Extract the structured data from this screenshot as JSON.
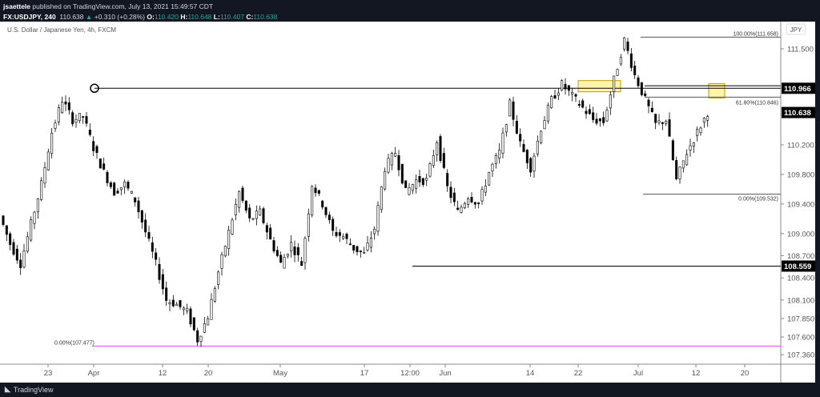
{
  "header": {
    "author": "jsaettele",
    "published": "published on TradingView.com, July 13, 2021 15:49:57 CDT",
    "symbol": "FX:USDJPY, 240",
    "last": "110.638",
    "change": "+0.310 (+0.28%)",
    "o_label": "O:",
    "o": "110.420",
    "h_label": "H:",
    "h": "110.648",
    "l_label": "L:",
    "l": "110.407",
    "c_label": "C:",
    "c": "110.638"
  },
  "chart_title": "U.S. Dollar / Japanese Yen, 4h, FXCM",
  "currency_badge": "JPY",
  "footer": {
    "brand": "TradingView"
  },
  "colors": {
    "up": "#26a69a",
    "candle": "#000000",
    "highlight": "#fff5a8",
    "fib_magenta": "#e040fb"
  },
  "chart_data": {
    "type": "candlestick",
    "yaxis_ticks": [
      "111.500",
      "110.200",
      "109.800",
      "109.400",
      "109.000",
      "108.700",
      "108.400",
      "108.100",
      "107.850",
      "107.600",
      "107.360"
    ],
    "xaxis_ticks": [
      "23",
      "Apr",
      "12",
      "20",
      "May",
      "17",
      "12:00",
      "Jun",
      "14",
      "22",
      "Jul",
      "12",
      "20"
    ],
    "price_labels": {
      "resistance": "110.966",
      "last": "110.638",
      "support": "108.559"
    },
    "fib_labels": {
      "top": "100.00%(111.658)",
      "mid": "61.80%(110.846)",
      "bottom": "0.00%(109.532)",
      "low": "0.00%(107.477)"
    },
    "closes": [
      109.24,
      108.86,
      108.59,
      109.13,
      109.67,
      110.37,
      110.81,
      110.54,
      110.59,
      110.16,
      109.83,
      109.56,
      109.67,
      109.45,
      109.02,
      108.59,
      108.1,
      108.04,
      107.94,
      107.56,
      107.88,
      108.48,
      109.02,
      109.56,
      109.18,
      109.29,
      108.91,
      108.59,
      108.86,
      108.59,
      109.67,
      109.4,
      109.02,
      108.96,
      108.8,
      108.72,
      109.07,
      109.89,
      110.1,
      109.56,
      109.72,
      109.72,
      110.26,
      109.62,
      109.29,
      109.51,
      109.4,
      109.83,
      110.1,
      110.75,
      110.21,
      109.89,
      110.43,
      110.81,
      111.02,
      110.86,
      110.7,
      110.54,
      110.51,
      111.08,
      111.62,
      111.14,
      110.81,
      110.48,
      110.54,
      109.72,
      110.1,
      110.37,
      110.64
    ]
  }
}
